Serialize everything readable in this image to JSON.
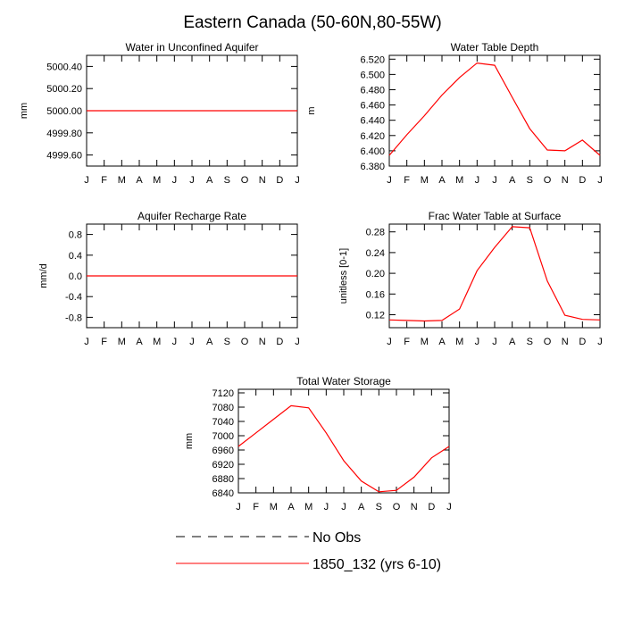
{
  "figure": {
    "title": "Eastern Canada (50-60N,80-55W)"
  },
  "colors": {
    "model_line": "#ff0000",
    "obs_line": "#000000",
    "axis": "#000000"
  },
  "legend": {
    "entries": [
      {
        "label": "No Obs",
        "style": "dashed",
        "color": "#000000"
      },
      {
        "label": "1850_132 (yrs 6-10)",
        "style": "solid",
        "color": "#ff0000"
      }
    ]
  },
  "chart_data": [
    {
      "type": "line",
      "title": "Water in Unconfined Aquifer",
      "xlabel": "",
      "ylabel": "mm",
      "categories": [
        "J",
        "F",
        "M",
        "A",
        "M",
        "J",
        "J",
        "A",
        "S",
        "O",
        "N",
        "D",
        "J"
      ],
      "yticks": [
        5000.4,
        5000.2,
        5000.0,
        4999.8,
        4999.6
      ],
      "ytick_labels": [
        "5000.40",
        "5000.20",
        "5000.00",
        "4999.80",
        "4999.60"
      ],
      "ylim": [
        4999.5,
        5000.5
      ],
      "series": [
        {
          "values": [
            5000,
            5000,
            5000,
            5000,
            5000,
            5000,
            5000,
            5000,
            5000,
            5000,
            5000,
            5000,
            5000
          ],
          "color": "#ff0000"
        }
      ]
    },
    {
      "type": "line",
      "title": "Water Table Depth",
      "xlabel": "",
      "ylabel": "m",
      "categories": [
        "J",
        "F",
        "M",
        "A",
        "M",
        "J",
        "J",
        "A",
        "S",
        "O",
        "N",
        "D",
        "J"
      ],
      "yticks": [
        6.52,
        6.5,
        6.48,
        6.46,
        6.44,
        6.42,
        6.4,
        6.38
      ],
      "ytick_labels": [
        "6.520",
        "6.500",
        "6.480",
        "6.460",
        "6.440",
        "6.420",
        "6.400",
        "6.380"
      ],
      "ylim": [
        6.38,
        6.525
      ],
      "series": [
        {
          "values": [
            6.394,
            6.421,
            6.446,
            6.473,
            6.496,
            6.515,
            6.512,
            6.47,
            6.429,
            6.401,
            6.4,
            6.414,
            6.394
          ],
          "color": "#ff0000"
        }
      ]
    },
    {
      "type": "line",
      "title": "Aquifer Recharge Rate",
      "xlabel": "",
      "ylabel": "mm/d",
      "categories": [
        "J",
        "F",
        "M",
        "A",
        "M",
        "J",
        "J",
        "A",
        "S",
        "O",
        "N",
        "D",
        "J"
      ],
      "yticks": [
        0.8,
        0.4,
        0.0,
        -0.4,
        -0.8
      ],
      "ytick_labels": [
        "0.8",
        "0.4",
        "0.0",
        "-0.4",
        "-0.8"
      ],
      "ylim": [
        -1.0,
        1.0
      ],
      "series": [
        {
          "values": [
            0,
            0,
            0,
            0,
            0,
            0,
            0,
            0,
            0,
            0,
            0,
            0,
            0
          ],
          "color": "#ff0000"
        }
      ]
    },
    {
      "type": "line",
      "title": "Frac Water Table at Surface",
      "xlabel": "",
      "ylabel": "unitless [0-1]",
      "categories": [
        "J",
        "F",
        "M",
        "A",
        "M",
        "J",
        "J",
        "A",
        "S",
        "O",
        "N",
        "D",
        "J"
      ],
      "yticks": [
        0.28,
        0.24,
        0.2,
        0.16,
        0.12
      ],
      "ytick_labels": [
        "0.28",
        "0.24",
        "0.20",
        "0.16",
        "0.12"
      ],
      "ylim": [
        0.095,
        0.295
      ],
      "series": [
        {
          "values": [
            0.11,
            0.109,
            0.108,
            0.109,
            0.131,
            0.205,
            0.25,
            0.29,
            0.288,
            0.185,
            0.119,
            0.111,
            0.11
          ],
          "color": "#ff0000"
        }
      ]
    },
    {
      "type": "line",
      "title": "Total Water Storage",
      "xlabel": "",
      "ylabel": "mm",
      "categories": [
        "J",
        "F",
        "M",
        "A",
        "M",
        "J",
        "J",
        "A",
        "S",
        "O",
        "N",
        "D",
        "J"
      ],
      "yticks": [
        7120,
        7080,
        7040,
        7000,
        6960,
        6920,
        6880,
        6840
      ],
      "ytick_labels": [
        "7120",
        "7080",
        "7040",
        "7000",
        "6960",
        "6920",
        "6880",
        "6840"
      ],
      "ylim": [
        6840,
        7130
      ],
      "series": [
        {
          "values": [
            6970,
            7008,
            7046,
            7084,
            7078,
            7008,
            6930,
            6873,
            6843,
            6847,
            6884,
            6938,
            6970
          ],
          "color": "#ff0000"
        }
      ]
    }
  ]
}
